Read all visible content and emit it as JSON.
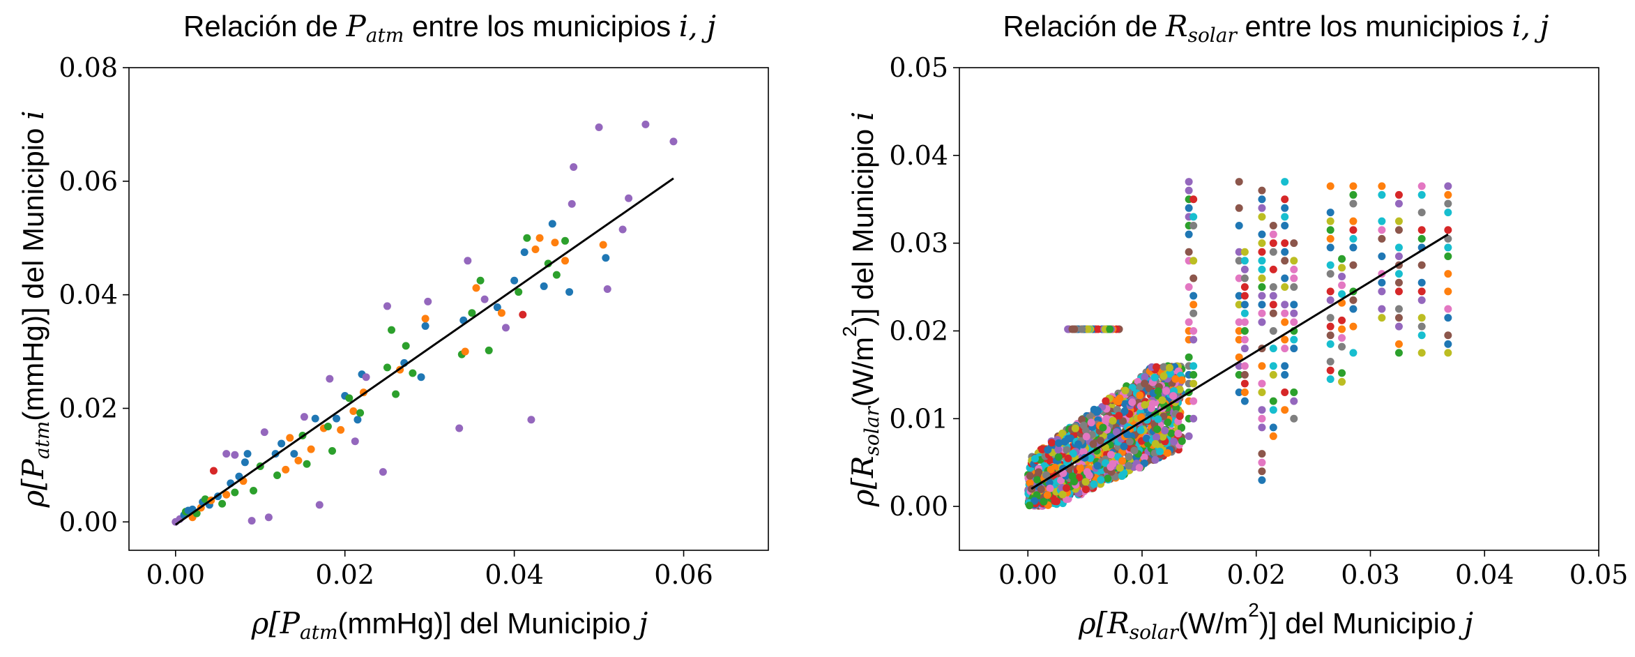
{
  "chart_data": [
    {
      "type": "scatter",
      "title_parts": [
        "Relación de ",
        "P",
        "atm",
        " entre los municipios ",
        "i, j"
      ],
      "xlabel_parts": [
        "ρ[",
        "P",
        "atm",
        "(mmHg)] del Municipio ",
        "j"
      ],
      "ylabel_parts": [
        "ρ[",
        "P",
        "atm",
        "(mmHg)] del Municipio ",
        "i"
      ],
      "xlim": [
        -0.0055,
        0.07
      ],
      "ylim": [
        -0.005,
        0.08
      ],
      "xticks": [
        0.0,
        0.02,
        0.04,
        0.06
      ],
      "xtick_labels": [
        "0.00",
        "0.02",
        "0.04",
        "0.06"
      ],
      "yticks": [
        0.0,
        0.02,
        0.04,
        0.06,
        0.08
      ],
      "ytick_labels": [
        "0.00",
        "0.02",
        "0.04",
        "0.06",
        "0.08"
      ],
      "grid": false,
      "fit_line": {
        "x": [
          0.0,
          0.0588
        ],
        "y": [
          -0.0005,
          0.0605
        ]
      },
      "colors": [
        "#1f77b4",
        "#ff7f0e",
        "#2ca02c",
        "#d62728",
        "#9467bd"
      ],
      "points": [
        [
          0.0,
          0.0,
          4
        ],
        [
          0.0005,
          0.0005,
          4
        ],
        [
          0.001,
          0.0012,
          0
        ],
        [
          0.0012,
          0.0018,
          2
        ],
        [
          0.0015,
          0.002,
          0
        ],
        [
          0.002,
          0.0008,
          1
        ],
        [
          0.002,
          0.0022,
          0
        ],
        [
          0.0025,
          0.0015,
          2
        ],
        [
          0.003,
          0.0025,
          1
        ],
        [
          0.0032,
          0.0035,
          0
        ],
        [
          0.0035,
          0.004,
          2
        ],
        [
          0.004,
          0.003,
          0
        ],
        [
          0.0042,
          0.0038,
          1
        ],
        [
          0.0045,
          0.009,
          3
        ],
        [
          0.005,
          0.0045,
          0
        ],
        [
          0.0055,
          0.0032,
          2
        ],
        [
          0.006,
          0.0048,
          1
        ],
        [
          0.006,
          0.012,
          4
        ],
        [
          0.0065,
          0.0068,
          0
        ],
        [
          0.007,
          0.0118,
          4
        ],
        [
          0.007,
          0.0052,
          2
        ],
        [
          0.0075,
          0.008,
          0
        ],
        [
          0.008,
          0.0072,
          1
        ],
        [
          0.0082,
          0.0105,
          0
        ],
        [
          0.0085,
          0.012,
          0
        ],
        [
          0.009,
          0.0002,
          4
        ],
        [
          0.0092,
          0.0055,
          2
        ],
        [
          0.01,
          0.0098,
          2
        ],
        [
          0.0105,
          0.0158,
          4
        ],
        [
          0.011,
          0.0008,
          4
        ],
        [
          0.0118,
          0.012,
          0
        ],
        [
          0.012,
          0.0082,
          2
        ],
        [
          0.0125,
          0.0138,
          0
        ],
        [
          0.013,
          0.0092,
          1
        ],
        [
          0.0135,
          0.0148,
          1
        ],
        [
          0.014,
          0.012,
          0
        ],
        [
          0.0145,
          0.0108,
          1
        ],
        [
          0.015,
          0.0152,
          2
        ],
        [
          0.0152,
          0.0185,
          4
        ],
        [
          0.0155,
          0.0102,
          2
        ],
        [
          0.016,
          0.0128,
          1
        ],
        [
          0.0165,
          0.0182,
          0
        ],
        [
          0.017,
          0.003,
          4
        ],
        [
          0.0175,
          0.0165,
          1
        ],
        [
          0.018,
          0.0168,
          2
        ],
        [
          0.0182,
          0.0252,
          4
        ],
        [
          0.0185,
          0.0125,
          2
        ],
        [
          0.019,
          0.0182,
          0
        ],
        [
          0.0195,
          0.0162,
          1
        ],
        [
          0.02,
          0.0222,
          0
        ],
        [
          0.0205,
          0.0218,
          2
        ],
        [
          0.021,
          0.0195,
          1
        ],
        [
          0.0212,
          0.0142,
          4
        ],
        [
          0.0215,
          0.018,
          0
        ],
        [
          0.0218,
          0.0192,
          2
        ],
        [
          0.022,
          0.026,
          0
        ],
        [
          0.0222,
          0.0228,
          1
        ],
        [
          0.0225,
          0.0255,
          4
        ],
        [
          0.0245,
          0.0088,
          4
        ],
        [
          0.025,
          0.038,
          4
        ],
        [
          0.025,
          0.0272,
          2
        ],
        [
          0.0255,
          0.0338,
          2
        ],
        [
          0.026,
          0.0225,
          2
        ],
        [
          0.0265,
          0.0268,
          1
        ],
        [
          0.027,
          0.028,
          0
        ],
        [
          0.0272,
          0.031,
          2
        ],
        [
          0.028,
          0.0262,
          2
        ],
        [
          0.029,
          0.0255,
          0
        ],
        [
          0.0295,
          0.0345,
          0
        ],
        [
          0.0295,
          0.0358,
          1
        ],
        [
          0.0298,
          0.0388,
          4
        ],
        [
          0.0335,
          0.0165,
          4
        ],
        [
          0.0338,
          0.0295,
          2
        ],
        [
          0.034,
          0.0355,
          0
        ],
        [
          0.0342,
          0.03,
          1
        ],
        [
          0.0345,
          0.046,
          4
        ],
        [
          0.035,
          0.0368,
          2
        ],
        [
          0.0355,
          0.0412,
          1
        ],
        [
          0.036,
          0.0425,
          2
        ],
        [
          0.0365,
          0.0392,
          4
        ],
        [
          0.037,
          0.0302,
          2
        ],
        [
          0.038,
          0.0378,
          0
        ],
        [
          0.0385,
          0.0368,
          1
        ],
        [
          0.039,
          0.0342,
          4
        ],
        [
          0.04,
          0.0425,
          0
        ],
        [
          0.0405,
          0.0405,
          2
        ],
        [
          0.041,
          0.0365,
          3
        ],
        [
          0.0412,
          0.0475,
          0
        ],
        [
          0.0415,
          0.05,
          2
        ],
        [
          0.042,
          0.018,
          4
        ],
        [
          0.0425,
          0.048,
          1
        ],
        [
          0.043,
          0.05,
          1
        ],
        [
          0.0435,
          0.0415,
          0
        ],
        [
          0.044,
          0.0455,
          2
        ],
        [
          0.0445,
          0.0525,
          0
        ],
        [
          0.0448,
          0.0492,
          1
        ],
        [
          0.045,
          0.0435,
          2
        ],
        [
          0.046,
          0.046,
          1
        ],
        [
          0.046,
          0.0495,
          2
        ],
        [
          0.0465,
          0.0405,
          0
        ],
        [
          0.0468,
          0.056,
          4
        ],
        [
          0.047,
          0.0625,
          4
        ],
        [
          0.05,
          0.0695,
          4
        ],
        [
          0.0505,
          0.0488,
          1
        ],
        [
          0.0508,
          0.0465,
          0
        ],
        [
          0.051,
          0.041,
          4
        ],
        [
          0.0528,
          0.0515,
          4
        ],
        [
          0.0535,
          0.057,
          4
        ],
        [
          0.0555,
          0.07,
          4
        ],
        [
          0.0588,
          0.067,
          4
        ]
      ]
    },
    {
      "type": "scatter",
      "title_parts": [
        "Relación de ",
        "R",
        "solar",
        " entre los municipios ",
        "i, j"
      ],
      "xlabel_parts": [
        "ρ[",
        "R",
        "solar",
        "(W/m",
        "2",
        ")] del Municipio ",
        "j"
      ],
      "ylabel_parts": [
        "ρ[",
        "R",
        "solar",
        "(W/m",
        "2",
        ")] del Municipio ",
        "i"
      ],
      "xlim": [
        -0.006,
        0.05
      ],
      "ylim": [
        -0.005,
        0.05
      ],
      "xticks": [
        0.0,
        0.01,
        0.02,
        0.03,
        0.04,
        0.05
      ],
      "xtick_labels": [
        "0.00",
        "0.01",
        "0.02",
        "0.03",
        "0.04",
        "0.05"
      ],
      "yticks": [
        0.0,
        0.01,
        0.02,
        0.03,
        0.04,
        0.05
      ],
      "ytick_labels": [
        "0.00",
        "0.01",
        "0.02",
        "0.03",
        "0.04",
        "0.05"
      ],
      "grid": false,
      "fit_line": {
        "x": [
          0.0003,
          0.0368
        ],
        "y": [
          0.002,
          0.031
        ]
      },
      "colors": [
        "#1f77b4",
        "#ff7f0e",
        "#2ca02c",
        "#d62728",
        "#9467bd",
        "#8c564b",
        "#e377c2",
        "#7f7f7f",
        "#bcbd22",
        "#17becf"
      ],
      "columns": [
        {
          "x": 0.0141,
          "ymin": 0.006,
          "ymax": 0.0368
        },
        {
          "x": 0.0145,
          "ymin": 0.007,
          "ymax": 0.0355
        },
        {
          "x": 0.0185,
          "ymin": 0.012,
          "ymax": 0.0368
        },
        {
          "x": 0.019,
          "ymin": 0.012,
          "ymax": 0.033
        },
        {
          "x": 0.0205,
          "ymin": 0.003,
          "ymax": 0.0368
        },
        {
          "x": 0.0215,
          "ymin": 0.008,
          "ymax": 0.033
        },
        {
          "x": 0.0225,
          "ymin": 0.01,
          "ymax": 0.0368
        },
        {
          "x": 0.0233,
          "ymin": 0.01,
          "ymax": 0.03
        },
        {
          "x": 0.0265,
          "ymin": 0.0145,
          "ymax": 0.0368
        },
        {
          "x": 0.0275,
          "ymin": 0.0142,
          "ymax": 0.028
        },
        {
          "x": 0.0285,
          "ymin": 0.0175,
          "ymax": 0.0368
        },
        {
          "x": 0.031,
          "ymin": 0.0175,
          "ymax": 0.0368
        },
        {
          "x": 0.0325,
          "ymin": 0.0175,
          "ymax": 0.0368
        },
        {
          "x": 0.0345,
          "ymin": 0.0175,
          "ymax": 0.0368
        },
        {
          "x": 0.0368,
          "ymin": 0.0175,
          "ymax": 0.0368
        }
      ],
      "cloud": {
        "xmin": 0.0,
        "xmax": 0.0135,
        "ymin": 0.0,
        "ymax": 0.016
      }
    }
  ]
}
